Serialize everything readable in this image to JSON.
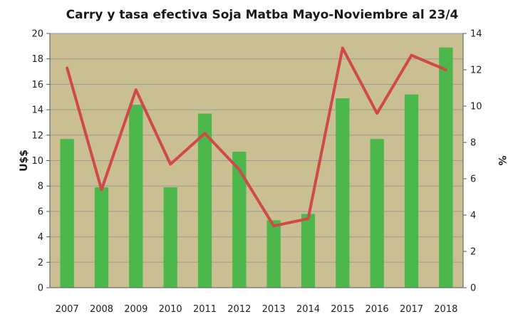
{
  "chart_data": {
    "type": "bar",
    "title": "Carry y tasa efectiva Soja Matba Mayo-Noviembre al 23/4",
    "categories": [
      "2007",
      "2008",
      "2009",
      "2010",
      "2011",
      "2012",
      "2013",
      "2014",
      "2015",
      "2016",
      "2017",
      "2018"
    ],
    "ylabel": "U$$",
    "y2label": "%",
    "ylim": [
      0,
      20
    ],
    "y2lim": [
      0,
      14
    ],
    "yticks": [
      "0",
      "2",
      "4",
      "6",
      "8",
      "10",
      "12",
      "14",
      "16",
      "18",
      "20"
    ],
    "y2ticks": [
      "0",
      "2",
      "4",
      "6",
      "8",
      "10",
      "12",
      "14"
    ],
    "grid": true,
    "series": [
      {
        "type": "bar",
        "axis": "left",
        "values": [
          11.7,
          7.9,
          14.4,
          7.9,
          13.7,
          10.7,
          5.3,
          5.8,
          14.9,
          11.7,
          15.2,
          18.9
        ]
      },
      {
        "type": "line",
        "axis": "right",
        "values": [
          12.1,
          5.4,
          10.9,
          6.8,
          8.5,
          6.5,
          3.4,
          3.8,
          13.2,
          9.6,
          12.8,
          12.0
        ]
      }
    ],
    "colors": {
      "plot_background": "#c9bf93",
      "bar": "#4cb84c",
      "line": "#d04848",
      "grid": "#9a9a9a"
    }
  }
}
